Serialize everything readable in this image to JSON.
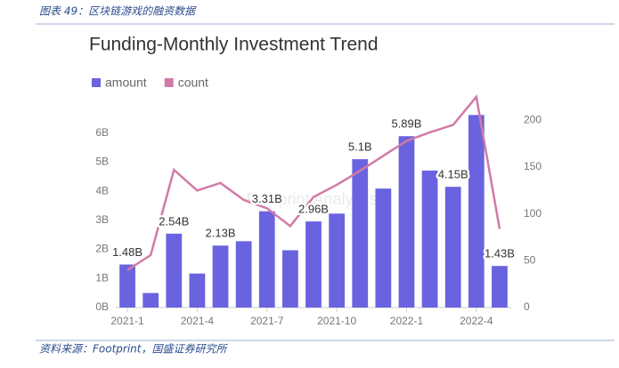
{
  "caption": "图表 49：区块链游戏的融资数据",
  "source": "资料来源：Footprint，国盛证券研究所",
  "chart_data": {
    "type": "bar-line",
    "title": "Funding-Monthly Investment Trend",
    "watermark": "Footprint Analytics",
    "categories": [
      "2021-1",
      null,
      null,
      "2021-4",
      null,
      null,
      "2021-7",
      null,
      null,
      "2021-10",
      null,
      null,
      "2022-1",
      null,
      null,
      "2022-4",
      null
    ],
    "series": [
      {
        "name": "amount",
        "type": "bar",
        "color": "#6a63df",
        "values": [
          1.48,
          0.5,
          2.54,
          1.17,
          2.13,
          2.28,
          3.31,
          1.97,
          2.96,
          3.23,
          5.1,
          4.09,
          5.89,
          4.71,
          4.15,
          6.62,
          1.43
        ],
        "value_labels": [
          "1.48B",
          null,
          "2.54B",
          null,
          "2.13B",
          null,
          "3.31B",
          null,
          "2.96B",
          null,
          "5.1B",
          null,
          "5.89B",
          null,
          "4.15B",
          null,
          "1.43B"
        ]
      },
      {
        "name": "count",
        "type": "line",
        "axis": "y2",
        "color": "#d27aa6",
        "values": [
          40,
          56,
          147,
          125,
          133,
          115,
          106,
          87,
          118,
          131,
          146,
          162,
          178,
          187,
          195,
          225,
          84
        ]
      }
    ],
    "ylim": [
      0,
      6.6
    ],
    "yticks": [
      {
        "value": 0,
        "label": "0B"
      },
      {
        "value": 1,
        "label": "1B"
      },
      {
        "value": 2,
        "label": "2B"
      },
      {
        "value": 3,
        "label": "3B"
      },
      {
        "value": 4,
        "label": "4B"
      },
      {
        "value": 5,
        "label": "5B"
      },
      {
        "value": 6,
        "label": "6B"
      }
    ],
    "y2lim": [
      0,
      205
    ],
    "y2ticks": [
      0,
      50,
      100,
      150,
      200
    ],
    "legend": "top-left"
  }
}
